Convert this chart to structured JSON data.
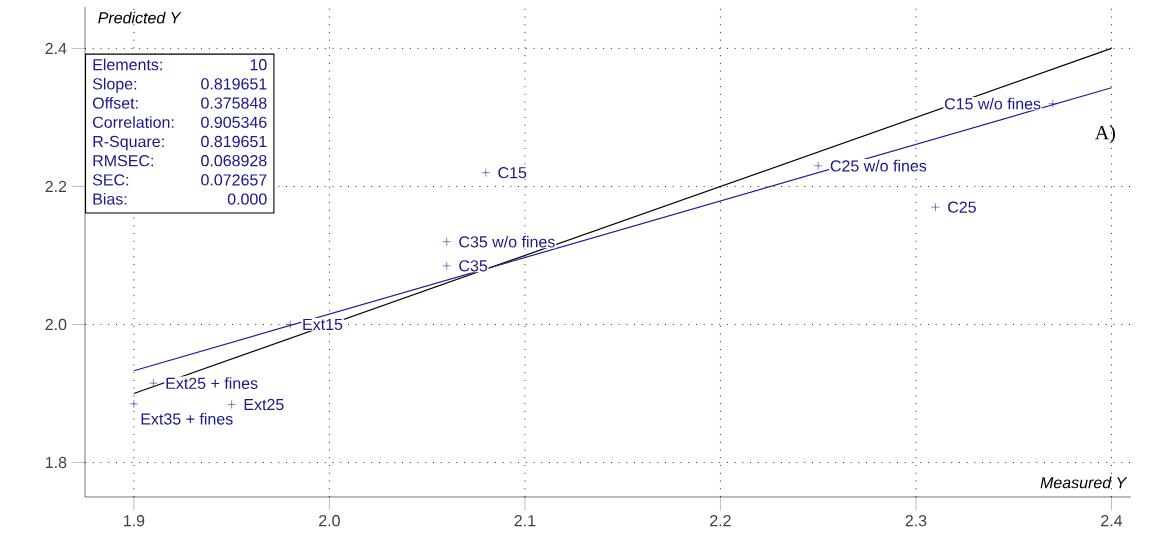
{
  "chart_data": {
    "type": "scatter",
    "xlabel": "Measured Y",
    "ylabel": "Predicted Y",
    "xlim": [
      1.875,
      2.41
    ],
    "ylim": [
      1.75,
      2.46
    ],
    "xticks": [
      {
        "value": 1.9,
        "label": "1.9"
      },
      {
        "value": 2.0,
        "label": "2.0"
      },
      {
        "value": 2.1,
        "label": "2.1"
      },
      {
        "value": 2.2,
        "label": "2.2"
      },
      {
        "value": 2.3,
        "label": "2.3"
      },
      {
        "value": 2.4,
        "label": "2.4"
      }
    ],
    "yticks": [
      {
        "value": 1.8,
        "label": "1.8"
      },
      {
        "value": 2.0,
        "label": "2.0"
      },
      {
        "value": 2.2,
        "label": "2.2"
      },
      {
        "value": 2.4,
        "label": "2.4"
      }
    ],
    "grid": true,
    "series": [
      {
        "marker": "cross",
        "color": "#1c1c8c",
        "x": [
          2.08,
          2.06,
          2.06,
          2.37,
          2.25,
          2.31,
          1.98,
          1.91,
          1.9,
          1.95
        ],
        "values": [
          2.22,
          2.12,
          2.085,
          2.32,
          2.23,
          2.17,
          2.0,
          1.915,
          1.885,
          1.884
        ]
      },
      {
        "type": "line",
        "color": "#000000",
        "x": [
          1.9,
          2.4
        ],
        "values": [
          1.9,
          2.4
        ]
      },
      {
        "type": "line",
        "color": "#1c1c9c",
        "x": [
          1.9,
          2.4
        ],
        "values": [
          1.933,
          2.343
        ]
      }
    ],
    "annotations": [
      {
        "text": "C15",
        "x": 2.08,
        "y": 2.22
      },
      {
        "text": "C35 w/o fines",
        "x": 2.06,
        "y": 2.12
      },
      {
        "text": "C35",
        "x": 2.06,
        "y": 2.085
      },
      {
        "text": "C15 w/o fines",
        "x": 2.37,
        "y": 2.32
      },
      {
        "text": "C25 w/o fines",
        "x": 2.25,
        "y": 2.23
      },
      {
        "text": "C25",
        "x": 2.31,
        "y": 2.17
      },
      {
        "text": "Ext15",
        "x": 1.98,
        "y": 2.0
      },
      {
        "text": "Ext25 + fines",
        "x": 1.91,
        "y": 1.915
      },
      {
        "text": "Ext35 + fines",
        "x": 1.9,
        "y": 1.885
      },
      {
        "text": "Ext25",
        "x": 1.95,
        "y": 1.884
      },
      "Elements:",
      "10",
      "Slope:",
      "0.819651",
      "Offset:",
      "0.375848",
      "Correlation:",
      "0.905346",
      "R-Square:",
      "0.819651",
      "RMSEC:",
      "0.068928",
      "SEC:",
      "0.072657",
      "Bias:",
      "0.000",
      "A)"
    ]
  }
}
